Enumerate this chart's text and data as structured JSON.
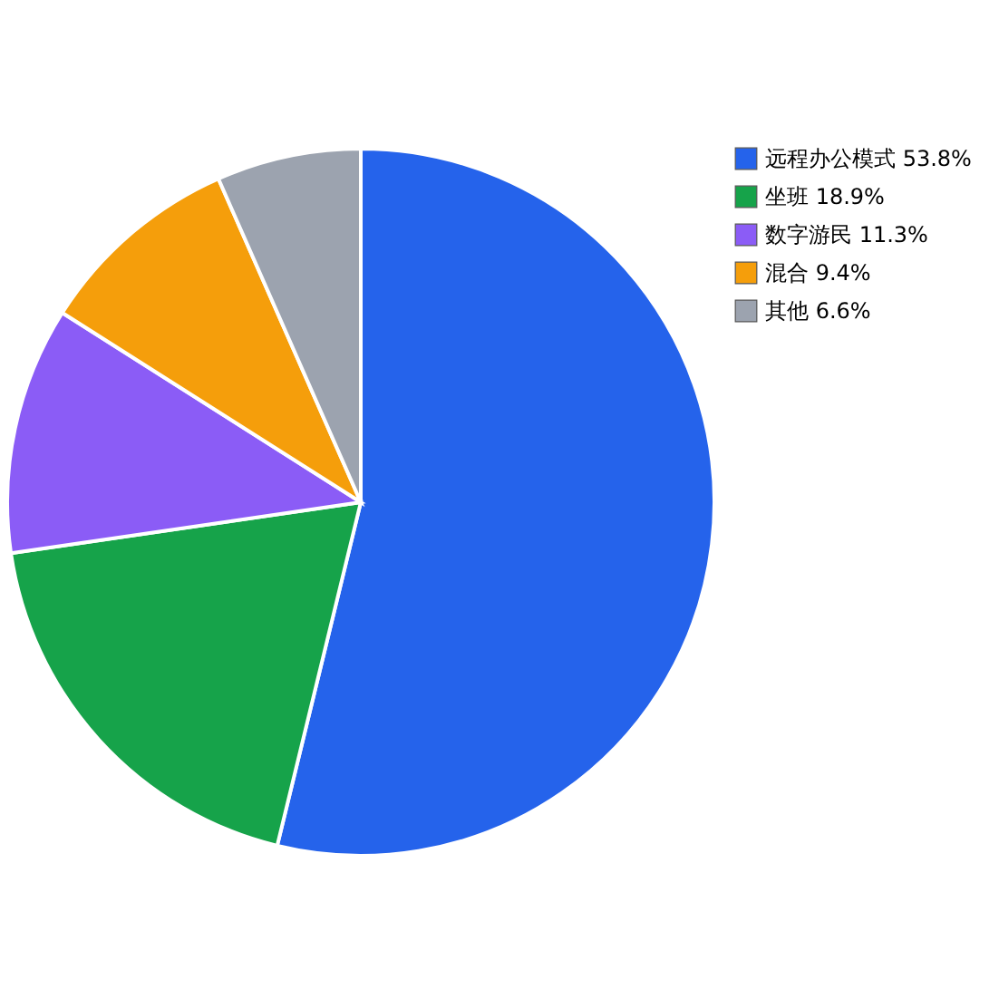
{
  "chart_data": {
    "type": "pie",
    "categories": [
      "远程办公模式 53.8%",
      "坐班 18.9%",
      "数字游民 11.3%",
      "混合 9.4%",
      "其他 6.6%"
    ],
    "values": [
      53.8,
      18.9,
      11.3,
      9.4,
      6.6
    ],
    "colors": [
      "#2563eb",
      "#16a34a",
      "#8b5cf6",
      "#f59e0b",
      "#9ca3af"
    ],
    "legend": "right"
  }
}
